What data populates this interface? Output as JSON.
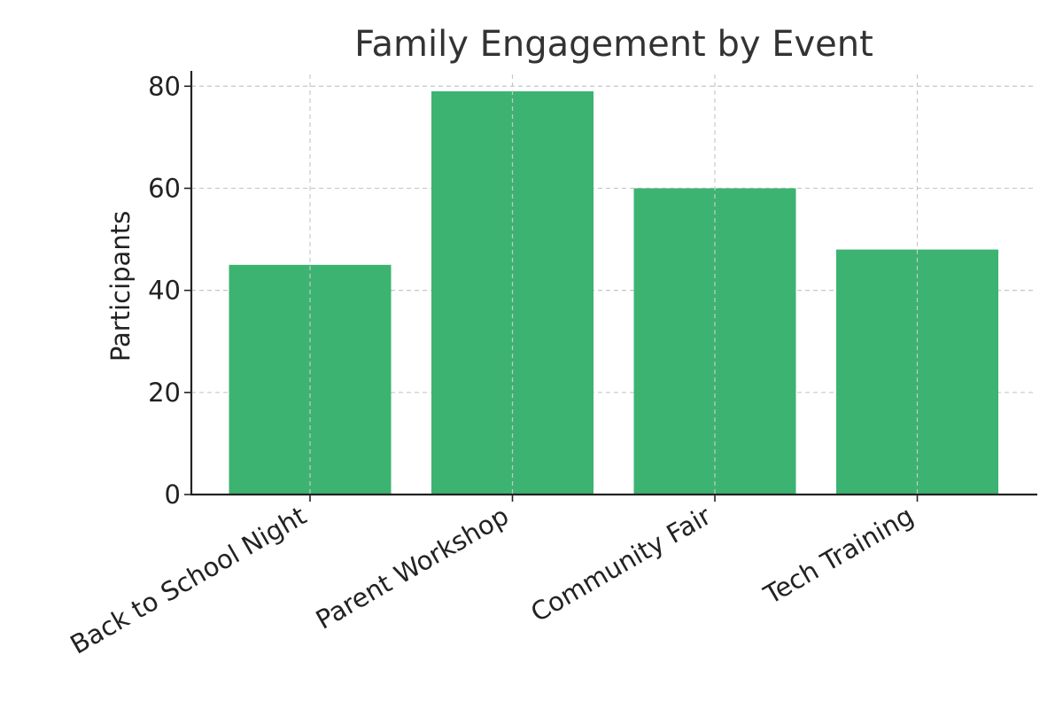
{
  "chart_data": {
    "type": "bar",
    "title": "Family Engagement by Event",
    "xlabel": "",
    "ylabel": "Participants",
    "categories": [
      "Back to School Night",
      "Parent Workshop",
      "Community Fair",
      "Tech Training"
    ],
    "values": [
      45,
      79,
      60,
      48
    ],
    "ylim": [
      0,
      83
    ],
    "yticks": [
      0,
      20,
      40,
      60,
      80
    ],
    "grid": true,
    "bar_color": "#3cb371"
  }
}
